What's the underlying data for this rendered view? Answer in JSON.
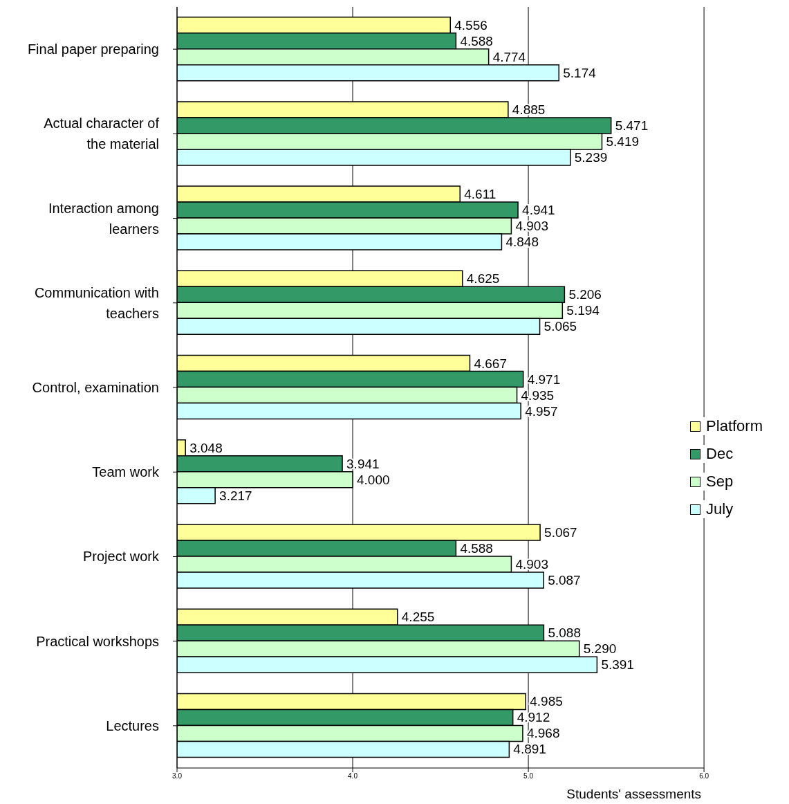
{
  "chart_data": {
    "type": "bar",
    "orientation": "horizontal",
    "xlabel": "Students' assessments",
    "categories": [
      "Final paper preparing",
      "Actual character of the material",
      "Interaction among learners",
      "Communication with teachers",
      "Control, examination",
      "Team work",
      "Project work",
      "Practical workshops",
      "Lectures"
    ],
    "series": [
      {
        "name": "Platform",
        "color": "#ffff99",
        "values": [
          4.556,
          4.885,
          4.611,
          4.625,
          4.667,
          3.048,
          5.067,
          4.255,
          4.985
        ],
        "value_labels": [
          "4.556",
          "4.885",
          "4.611",
          "4.625",
          "4.667",
          "3.048",
          "5.067",
          "4.255",
          "4.985"
        ]
      },
      {
        "name": "Dec",
        "color": "#339966",
        "values": [
          4.588,
          5.471,
          4.941,
          5.206,
          4.971,
          3.941,
          4.588,
          5.088,
          4.912
        ],
        "value_labels": [
          "4.588",
          "5.471",
          "4.941",
          "5.206",
          "4.971",
          "3.941",
          "4.588",
          "5.088",
          "4.912"
        ]
      },
      {
        "name": "Sep",
        "color": "#ccffcc",
        "values": [
          4.774,
          5.419,
          4.903,
          5.194,
          4.935,
          4.0,
          4.903,
          5.29,
          4.968
        ],
        "value_labels": [
          "4.774",
          "5.419",
          "4.903",
          "5.194",
          "4.935",
          "4.000",
          "4.903",
          "5.290",
          "4.968"
        ]
      },
      {
        "name": "July",
        "color": "#ccffff",
        "values": [
          5.174,
          5.239,
          4.848,
          5.065,
          4.957,
          3.217,
          5.087,
          5.391,
          4.891
        ],
        "value_labels": [
          "5.174",
          "5.239",
          "4.848",
          "5.065",
          "4.957",
          "3.217",
          "5.087",
          "5.391",
          "4.891"
        ]
      }
    ],
    "xlim": [
      3,
      6
    ],
    "xticks": [
      {
        "value": 3,
        "label": "3.0"
      },
      {
        "value": 4,
        "label": "4.0"
      },
      {
        "value": 5,
        "label": "5.0"
      },
      {
        "value": 6,
        "label": "6.0"
      }
    ],
    "grid": "x",
    "legend": "right"
  }
}
